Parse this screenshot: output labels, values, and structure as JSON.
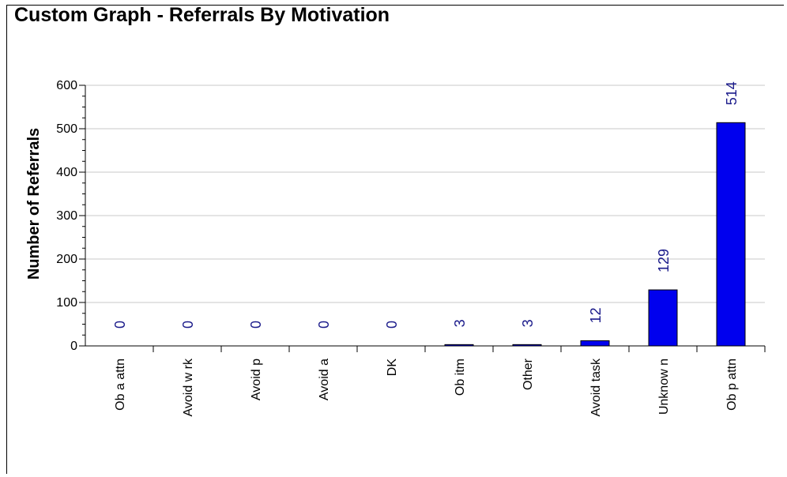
{
  "chart_data": {
    "type": "bar",
    "title": "Custom Graph - Referrals By Motivation",
    "xlabel": "",
    "ylabel": "Number of Referrals",
    "categories": [
      "Ob a attn",
      "Avoid w rk",
      "Avoid p",
      "Avoid a",
      "DK",
      "Ob itm",
      "Other",
      "Avoid task",
      "Unknow n",
      "Ob p attn"
    ],
    "values": [
      0,
      0,
      0,
      0,
      0,
      3,
      3,
      12,
      129,
      514
    ],
    "ylim": [
      0,
      600
    ],
    "yticks": [
      0,
      100,
      200,
      300,
      400,
      500,
      600
    ],
    "grid": true,
    "legend": "none",
    "colors": {
      "bar": "#0000ee",
      "bar_outline": "#000000",
      "data_label": "#1a1a8a",
      "grid": "#c8c8c8"
    }
  }
}
